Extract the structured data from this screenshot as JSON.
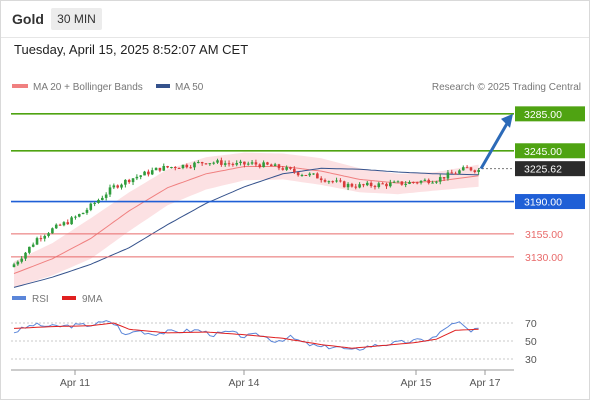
{
  "header": {
    "asset": "Gold",
    "timeframe": "30 MIN",
    "datetime": "Tuesday, April 15, 2025 8:52:07 AM CET"
  },
  "legend": {
    "ma20_label": "MA 20 + Bollinger Bands",
    "ma50_label": "MA 50",
    "copyright": "Research © 2025 Trading Central",
    "rsi_label": "RSI",
    "rsi_ma_label": "9MA"
  },
  "colors": {
    "resistance": "#4fa312",
    "pivot": "#1f5fd6",
    "support": "#e86a6a",
    "ma20": "#f08080",
    "ma50": "#35528c",
    "bollinger_fill": "#fce1e3",
    "candle_up": "#2e9c3c",
    "candle_down": "#d93b3b",
    "arrow": "#2c6ab8",
    "rsi": "#5b86d9",
    "rsi_ma": "#e02020"
  },
  "chart_data": [
    {
      "type": "candlestick",
      "title": "Gold",
      "timeframe": "30 MIN",
      "x_ticks": [
        "Apr 11",
        "Apr 14",
        "Apr 15",
        "Apr 17"
      ],
      "ylim": [
        3105,
        3300
      ],
      "levels": [
        {
          "label": "3285.00",
          "value": 3285,
          "kind": "resistance"
        },
        {
          "label": "3245.00",
          "value": 3245,
          "kind": "resistance"
        },
        {
          "label": "3225.62",
          "value": 3225.62,
          "kind": "last_price"
        },
        {
          "label": "3190.00",
          "value": 3190,
          "kind": "pivot"
        },
        {
          "label": "3155.00",
          "value": 3155,
          "kind": "support"
        },
        {
          "label": "3130.00",
          "value": 3130,
          "kind": "support"
        }
      ],
      "forecast_arrow": {
        "from": 3225.62,
        "to": 3285
      },
      "close_path": [
        [
          0,
          3122
        ],
        [
          3,
          3135
        ],
        [
          6,
          3150
        ],
        [
          10,
          3160
        ],
        [
          14,
          3168
        ],
        [
          18,
          3178
        ],
        [
          22,
          3192
        ],
        [
          26,
          3206
        ],
        [
          30,
          3214
        ],
        [
          34,
          3220
        ],
        [
          38,
          3226
        ],
        [
          42,
          3228
        ],
        [
          46,
          3230
        ],
        [
          50,
          3233
        ],
        [
          54,
          3232
        ],
        [
          58,
          3230
        ],
        [
          62,
          3231
        ],
        [
          66,
          3229
        ],
        [
          70,
          3226
        ],
        [
          74,
          3221
        ],
        [
          78,
          3218
        ],
        [
          82,
          3213
        ],
        [
          86,
          3208
        ],
        [
          90,
          3207
        ],
        [
          94,
          3208
        ],
        [
          98,
          3209
        ],
        [
          102,
          3210
        ],
        [
          106,
          3212
        ],
        [
          110,
          3214
        ],
        [
          114,
          3220
        ],
        [
          118,
          3226
        ],
        [
          121,
          3224
        ]
      ],
      "ma20": [
        [
          0,
          3112
        ],
        [
          10,
          3128
        ],
        [
          20,
          3150
        ],
        [
          30,
          3180
        ],
        [
          40,
          3205
        ],
        [
          50,
          3220
        ],
        [
          60,
          3228
        ],
        [
          70,
          3228
        ],
        [
          80,
          3223
        ],
        [
          90,
          3214
        ],
        [
          100,
          3210
        ],
        [
          110,
          3212
        ],
        [
          121,
          3218
        ]
      ],
      "ma50": [
        [
          0,
          3097
        ],
        [
          10,
          3108
        ],
        [
          20,
          3122
        ],
        [
          30,
          3140
        ],
        [
          40,
          3165
        ],
        [
          50,
          3188
        ],
        [
          60,
          3206
        ],
        [
          70,
          3220
        ],
        [
          80,
          3226
        ],
        [
          90,
          3225
        ],
        [
          100,
          3222
        ],
        [
          110,
          3220
        ],
        [
          121,
          3219
        ]
      ],
      "bollinger_upper": [
        [
          0,
          3125
        ],
        [
          10,
          3145
        ],
        [
          20,
          3172
        ],
        [
          30,
          3200
        ],
        [
          40,
          3225
        ],
        [
          50,
          3238
        ],
        [
          60,
          3243
        ],
        [
          70,
          3242
        ],
        [
          80,
          3237
        ],
        [
          90,
          3226
        ],
        [
          100,
          3220
        ],
        [
          110,
          3222
        ],
        [
          121,
          3230
        ]
      ],
      "bollinger_lower": [
        [
          0,
          3097
        ],
        [
          10,
          3110
        ],
        [
          20,
          3128
        ],
        [
          30,
          3158
        ],
        [
          40,
          3186
        ],
        [
          50,
          3203
        ],
        [
          60,
          3213
        ],
        [
          70,
          3214
        ],
        [
          80,
          3208
        ],
        [
          90,
          3200
        ],
        [
          100,
          3198
        ],
        [
          110,
          3202
        ],
        [
          121,
          3206
        ]
      ]
    },
    {
      "type": "line",
      "title": "RSI",
      "ylim": [
        20,
        80
      ],
      "y_ticks": [
        70,
        50,
        30
      ],
      "series": [
        {
          "name": "RSI",
          "values": [
            [
              0,
              60
            ],
            [
              5,
              68
            ],
            [
              10,
              66
            ],
            [
              15,
              67
            ],
            [
              20,
              68
            ],
            [
              25,
              72
            ],
            [
              27,
              66
            ],
            [
              29,
              56
            ],
            [
              32,
              62
            ],
            [
              36,
              58
            ],
            [
              40,
              60
            ],
            [
              44,
              61
            ],
            [
              48,
              62
            ],
            [
              52,
              57
            ],
            [
              56,
              60
            ],
            [
              60,
              55
            ],
            [
              64,
              57
            ],
            [
              68,
              50
            ],
            [
              72,
              54
            ],
            [
              76,
              47
            ],
            [
              80,
              43
            ],
            [
              84,
              44
            ],
            [
              88,
              39
            ],
            [
              92,
              44
            ],
            [
              96,
              46
            ],
            [
              100,
              48
            ],
            [
              104,
              50
            ],
            [
              108,
              52
            ],
            [
              110,
              55
            ],
            [
              113,
              67
            ],
            [
              116,
              70
            ],
            [
              119,
              60
            ],
            [
              121,
              63
            ]
          ]
        },
        {
          "name": "9MA",
          "values": [
            [
              0,
              64
            ],
            [
              10,
              66
            ],
            [
              20,
              67
            ],
            [
              26,
              70
            ],
            [
              30,
              63
            ],
            [
              40,
              59
            ],
            [
              50,
              60
            ],
            [
              60,
              57
            ],
            [
              70,
              53
            ],
            [
              80,
              46
            ],
            [
              88,
              42
            ],
            [
              96,
              45
            ],
            [
              104,
              48
            ],
            [
              110,
              52
            ],
            [
              115,
              62
            ],
            [
              121,
              63
            ]
          ]
        }
      ]
    }
  ]
}
